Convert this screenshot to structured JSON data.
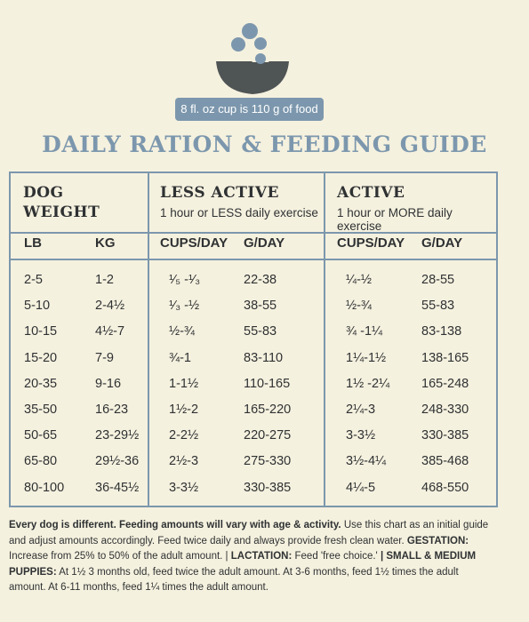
{
  "header": {
    "cup_label": "8 fl. oz cup is 110 g of food",
    "title": "DAILY RATION & FEEDING GUIDE"
  },
  "colors": {
    "accent": "#7c97ad",
    "bowl": "#4f5455",
    "background": "#f5f1df",
    "text": "#2f3233"
  },
  "icons": {
    "bowl": "bowl-with-kibble-icon"
  },
  "table": {
    "dog_weight": {
      "line1": "DOG",
      "line2": "WEIGHT",
      "col_lb": "LB",
      "col_kg": "KG"
    },
    "less_active": {
      "heading": "LESS ACTIVE",
      "subheading": "1 hour or LESS daily exercise",
      "col_cups": "CUPS/DAY",
      "col_g": "G/DAY"
    },
    "active": {
      "heading": "ACTIVE",
      "subheading": "1 hour or MORE daily exercise",
      "col_cups": "CUPS/DAY",
      "col_g": "G/DAY"
    },
    "rows": [
      {
        "lb": "2-5",
        "kg": "1-2",
        "less_cups": "¹⁄₅ -¹⁄₃",
        "less_g": "22-38",
        "active_cups": "¼-½",
        "active_g": "28-55"
      },
      {
        "lb": "5-10",
        "kg": "2-4½",
        "less_cups": "¹⁄₃ -½",
        "less_g": "38-55",
        "active_cups": "½-¾",
        "active_g": "55-83"
      },
      {
        "lb": "10-15",
        "kg": "4½-7",
        "less_cups": "½-¾",
        "less_g": "55-83",
        "active_cups": "¾ -1¼",
        "active_g": "83-138"
      },
      {
        "lb": "15-20",
        "kg": "7-9",
        "less_cups": "¾-1",
        "less_g": "83-110",
        "active_cups": "1¼-1½",
        "active_g": "138-165"
      },
      {
        "lb": "20-35",
        "kg": "9-16",
        "less_cups": "1-1½",
        "less_g": "110-165",
        "active_cups": "1½ -2¼",
        "active_g": "165-248"
      },
      {
        "lb": "35-50",
        "kg": "16-23",
        "less_cups": "1½-2",
        "less_g": "165-220",
        "active_cups": "2¼-3",
        "active_g": "248-330"
      },
      {
        "lb": "50-65",
        "kg": "23-29½",
        "less_cups": "2-2½",
        "less_g": "220-275",
        "active_cups": "3-3½",
        "active_g": "330-385"
      },
      {
        "lb": "65-80",
        "kg": "29½-36",
        "less_cups": "2½-3",
        "less_g": "275-330",
        "active_cups": "3½-4¼",
        "active_g": "385-468"
      },
      {
        "lb": "80-100",
        "kg": "36-45½",
        "less_cups": "3-3½",
        "less_g": "330-385",
        "active_cups": "4¼-5",
        "active_g": "468-550"
      }
    ]
  },
  "footnote": {
    "p1_bold": "Every dog is different. Feeding amounts will vary with age & activity.",
    "p1_text": " Use this chart as an initial guide and adjust amounts accordingly. Feed twice daily and always provide fresh clean water. ",
    "gestation_label": "GESTATION:",
    "gestation_text": " Increase from 25% to 50% of the adult amount. | ",
    "lactation_label": "LACTATION:",
    "lactation_text": " Feed 'free choice.' ",
    "puppies_label": "| SMALL & MEDIUM PUPPIES:",
    "puppies_text": " At 1½ 3 months old, feed twice the adult amount. At 3-6 months, feed 1½ times the adult amount. At 6-11 months, feed 1¼ times the adult amount."
  }
}
